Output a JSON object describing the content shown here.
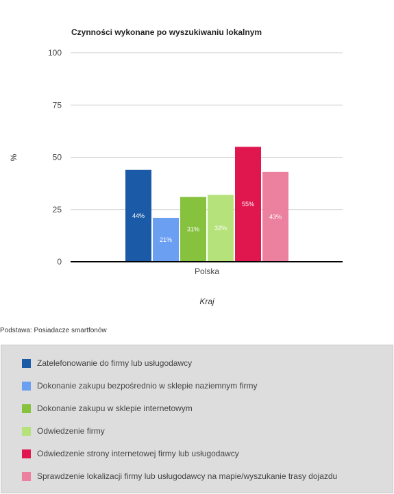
{
  "chart_data": {
    "type": "bar",
    "title": "Czynności wykonane po wyszukiwaniu lokalnym",
    "xlabel": "Kraj",
    "ylabel": "%",
    "categories": [
      "Polska"
    ],
    "ylim": [
      0,
      100
    ],
    "yticks": [
      0,
      25,
      50,
      75,
      100
    ],
    "grid": true,
    "series": [
      {
        "name": "Zatelefonowanie do firmy lub usługodawcy",
        "values": [
          44
        ],
        "label": "44%",
        "color": "#1a5aa6"
      },
      {
        "name": "Dokonanie zakupu bezpośrednio w sklepie naziemnym firmy",
        "values": [
          21
        ],
        "label": "21%",
        "color": "#6b9ff2"
      },
      {
        "name": "Dokonanie zakupu w sklepie internetowym",
        "values": [
          31
        ],
        "label": "31%",
        "color": "#86c23d"
      },
      {
        "name": "Odwiedzenie firmy",
        "values": [
          32
        ],
        "label": "32%",
        "color": "#b6e27c"
      },
      {
        "name": "Odwiedzenie strony internetowej firmy lub usługodawcy",
        "values": [
          55
        ],
        "label": "55%",
        "color": "#e0174f"
      },
      {
        "name": "Sprawdzenie lokalizacji firmy lub usługodawcy na mapie/wyszukanie trasy dojazdu",
        "values": [
          43
        ],
        "label": "43%",
        "color": "#ec809f"
      }
    ],
    "legend_position": "bottom"
  },
  "note": "Podstawa: Posiadacze smartfonów"
}
